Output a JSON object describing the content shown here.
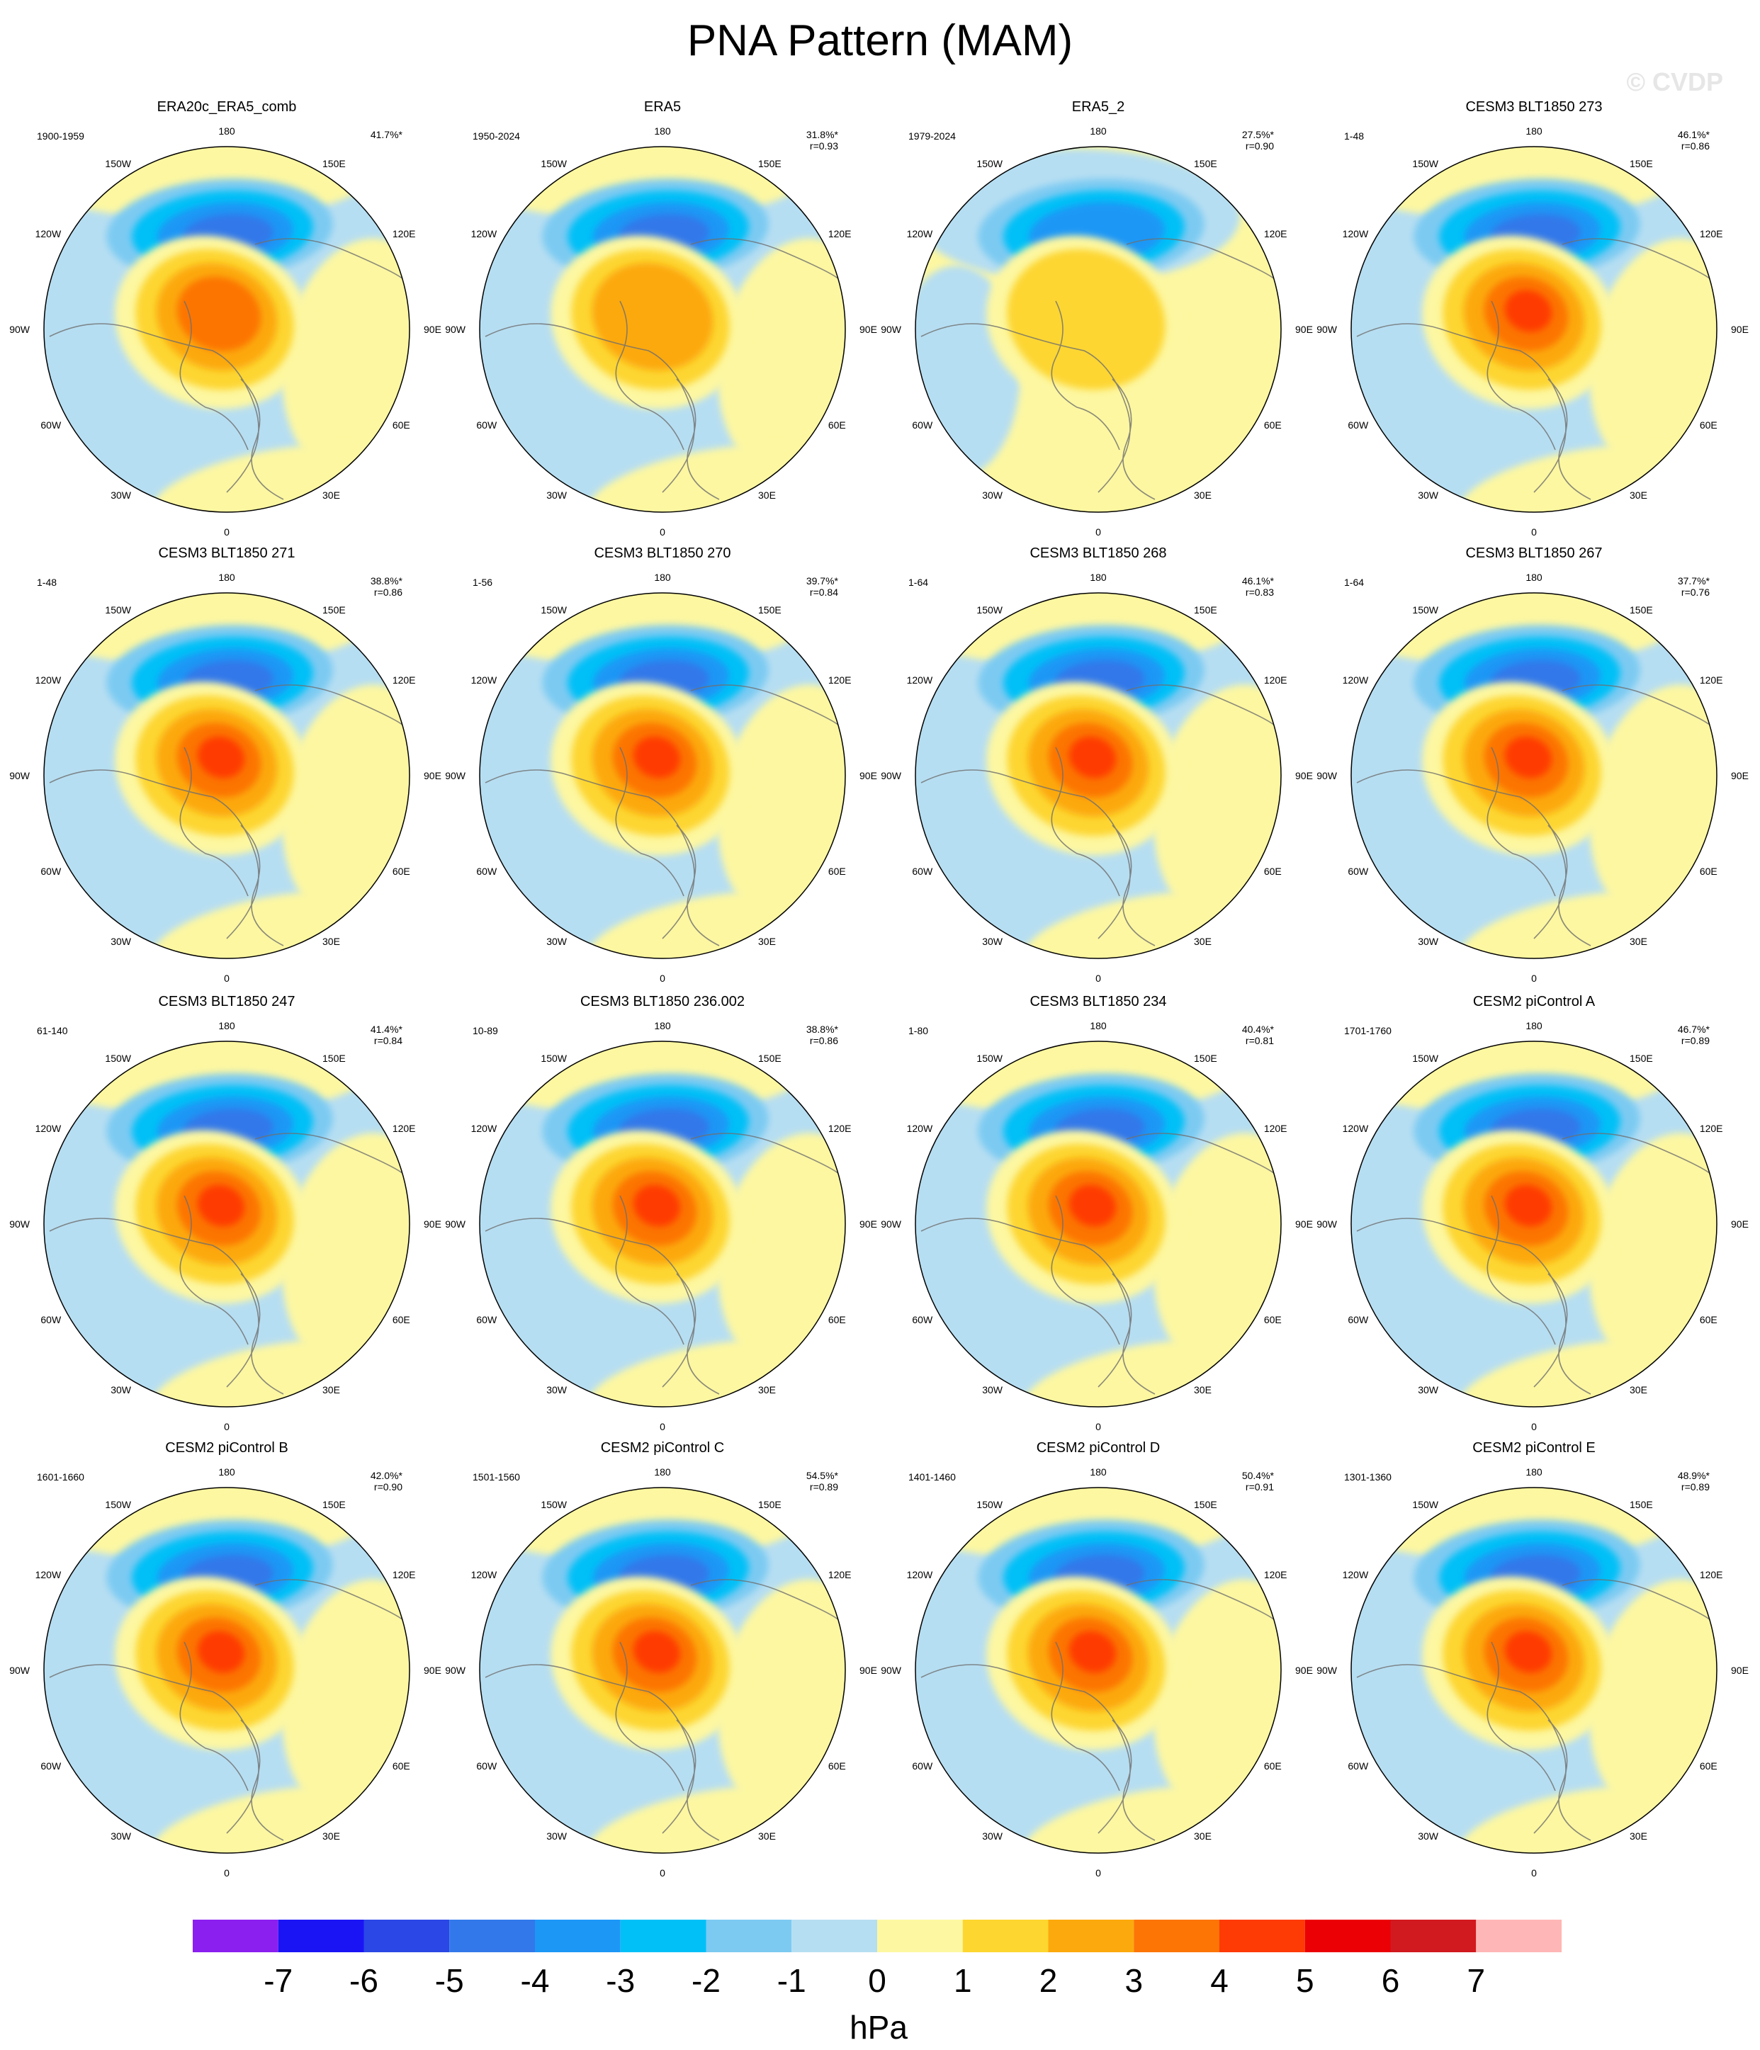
{
  "title": "PNA Pattern (MAM)",
  "watermark": "© CVDP",
  "longitude_labels": [
    "180",
    "150E",
    "120E",
    "90E",
    "60E",
    "30E",
    "0",
    "30W",
    "60W",
    "90W",
    "120W",
    "150W"
  ],
  "panels": [
    {
      "name": "ERA20c_ERA5_comb",
      "years": "1900-1959",
      "pct": "41.7%*",
      "r": "",
      "style": "obs1"
    },
    {
      "name": "ERA5",
      "years": "1950-2024",
      "pct": "31.8%*",
      "r": "r=0.93",
      "style": "obs2"
    },
    {
      "name": "ERA5_2",
      "years": "1979-2024",
      "pct": "27.5%*",
      "r": "r=0.90",
      "style": "obs3"
    },
    {
      "name": "CESM3 BLT1850 273",
      "years": "1-48",
      "pct": "46.1%*",
      "r": "r=0.86",
      "style": "model"
    },
    {
      "name": "CESM3 BLT1850 271",
      "years": "1-48",
      "pct": "38.8%*",
      "r": "r=0.86",
      "style": "model"
    },
    {
      "name": "CESM3 BLT1850 270",
      "years": "1-56",
      "pct": "39.7%*",
      "r": "r=0.84",
      "style": "model"
    },
    {
      "name": "CESM3 BLT1850 268",
      "years": "1-64",
      "pct": "46.1%*",
      "r": "r=0.83",
      "style": "model"
    },
    {
      "name": "CESM3 BLT1850 267",
      "years": "1-64",
      "pct": "37.7%*",
      "r": "r=0.76",
      "style": "model"
    },
    {
      "name": "CESM3 BLT1850 247",
      "years": "61-140",
      "pct": "41.4%*",
      "r": "r=0.84",
      "style": "model"
    },
    {
      "name": "CESM3 BLT1850 236.002",
      "years": "10-89",
      "pct": "38.8%*",
      "r": "r=0.86",
      "style": "model"
    },
    {
      "name": "CESM3 BLT1850 234",
      "years": "1-80",
      "pct": "40.4%*",
      "r": "r=0.81",
      "style": "model"
    },
    {
      "name": "CESM2 piControl A",
      "years": "1701-1760",
      "pct": "46.7%*",
      "r": "r=0.89",
      "style": "model"
    },
    {
      "name": "CESM2 piControl B",
      "years": "1601-1660",
      "pct": "42.0%*",
      "r": "r=0.90",
      "style": "model"
    },
    {
      "name": "CESM2 piControl C",
      "years": "1501-1560",
      "pct": "54.5%*",
      "r": "r=0.89",
      "style": "model"
    },
    {
      "name": "CESM2 piControl D",
      "years": "1401-1460",
      "pct": "50.4%*",
      "r": "r=0.91",
      "style": "model"
    },
    {
      "name": "CESM2 piControl E",
      "years": "1301-1360",
      "pct": "48.9%*",
      "r": "r=0.89",
      "style": "model"
    }
  ],
  "colorbar": {
    "unit": "hPa",
    "labels": [
      "-7",
      "-6",
      "-5",
      "-4",
      "-3",
      "-2",
      "-1",
      "0",
      "1",
      "2",
      "3",
      "4",
      "5",
      "6",
      "7"
    ],
    "colors": [
      "#8b1ff0",
      "#1a14f5",
      "#2b47e6",
      "#3278ea",
      "#1d97f6",
      "#00c0f7",
      "#7ccaf2",
      "#b6def2",
      "#fdf7a1",
      "#fdd630",
      "#fca90d",
      "#fc7505",
      "#fe3a05",
      "#eb0006",
      "#d11a1f",
      "#ffb6b6"
    ]
  }
}
